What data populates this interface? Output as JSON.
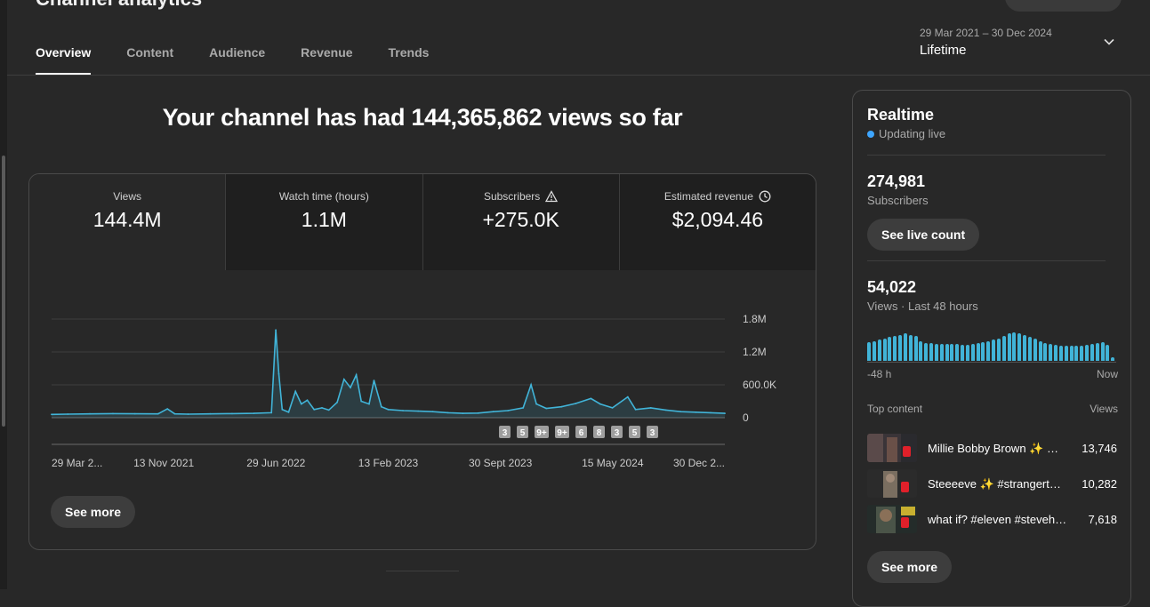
{
  "page_title": "Channel analytics",
  "tabs": [
    {
      "label": "Overview"
    },
    {
      "label": "Content"
    },
    {
      "label": "Audience"
    },
    {
      "label": "Revenue"
    },
    {
      "label": "Trends"
    }
  ],
  "date_range": {
    "range": "29 Mar 2021 – 30 Dec 2024",
    "label": "Lifetime"
  },
  "headline": "Your channel has had 144,365,862 views so far",
  "metrics": [
    {
      "label": "Views",
      "value": "144.4M",
      "icon": ""
    },
    {
      "label": "Watch time (hours)",
      "value": "1.1M",
      "icon": ""
    },
    {
      "label": "Subscribers",
      "value": "+275.0K",
      "icon": "warning-icon"
    },
    {
      "label": "Estimated revenue",
      "value": "$2,094.46",
      "icon": "clock-icon"
    }
  ],
  "chart_data": {
    "type": "line",
    "series_name": "Views",
    "color": "#41b4d8",
    "y_ticks": [
      "1.8M",
      "1.2M",
      "600.0K",
      "0"
    ],
    "ylim": [
      0,
      1800000
    ],
    "x_tick_labels": [
      "29 Mar 2...",
      "13 Nov 2021",
      "29 Jun 2022",
      "13 Feb 2023",
      "30 Sept 2023",
      "15 May 2024",
      "30 Dec 2..."
    ],
    "x_range": [
      "2021-03-29",
      "2024-12-30"
    ],
    "points": [
      [
        "2021-03-29",
        60000
      ],
      [
        "2021-05-01",
        65000
      ],
      [
        "2021-06-15",
        70000
      ],
      [
        "2021-08-01",
        75000
      ],
      [
        "2021-09-15",
        72000
      ],
      [
        "2021-11-01",
        70000
      ],
      [
        "2021-11-20",
        160000
      ],
      [
        "2021-12-05",
        70000
      ],
      [
        "2022-01-01",
        65000
      ],
      [
        "2022-02-15",
        70000
      ],
      [
        "2022-04-01",
        75000
      ],
      [
        "2022-05-15",
        80000
      ],
      [
        "2022-06-20",
        90000
      ],
      [
        "2022-06-29",
        1600000
      ],
      [
        "2022-07-05",
        800000
      ],
      [
        "2022-07-12",
        150000
      ],
      [
        "2022-07-25",
        100000
      ],
      [
        "2022-08-08",
        480000
      ],
      [
        "2022-08-20",
        250000
      ],
      [
        "2022-09-01",
        320000
      ],
      [
        "2022-09-15",
        150000
      ],
      [
        "2022-10-01",
        180000
      ],
      [
        "2022-10-15",
        140000
      ],
      [
        "2022-11-01",
        280000
      ],
      [
        "2022-11-15",
        700000
      ],
      [
        "2022-11-28",
        550000
      ],
      [
        "2022-12-10",
        780000
      ],
      [
        "2022-12-20",
        300000
      ],
      [
        "2023-01-05",
        250000
      ],
      [
        "2023-01-15",
        680000
      ],
      [
        "2023-01-30",
        200000
      ],
      [
        "2023-02-13",
        150000
      ],
      [
        "2023-03-15",
        130000
      ],
      [
        "2023-04-15",
        120000
      ],
      [
        "2023-05-15",
        110000
      ],
      [
        "2023-06-15",
        90000
      ],
      [
        "2023-07-15",
        80000
      ],
      [
        "2023-08-15",
        85000
      ],
      [
        "2023-09-15",
        110000
      ],
      [
        "2023-10-15",
        130000
      ],
      [
        "2023-11-15",
        180000
      ],
      [
        "2023-12-01",
        600000
      ],
      [
        "2023-12-12",
        250000
      ],
      [
        "2024-01-01",
        170000
      ],
      [
        "2024-02-01",
        200000
      ],
      [
        "2024-03-01",
        260000
      ],
      [
        "2024-04-01",
        350000
      ],
      [
        "2024-04-20",
        250000
      ],
      [
        "2024-05-15",
        180000
      ],
      [
        "2024-06-15",
        380000
      ],
      [
        "2024-07-01",
        150000
      ],
      [
        "2024-08-01",
        180000
      ],
      [
        "2024-09-01",
        140000
      ],
      [
        "2024-10-01",
        110000
      ],
      [
        "2024-11-01",
        100000
      ],
      [
        "2024-12-01",
        90000
      ],
      [
        "2024-12-30",
        80000
      ]
    ],
    "annotation_markers": [
      "3",
      "5",
      "9+",
      "9+",
      "6",
      "8",
      "3",
      "5",
      "3"
    ],
    "grid": true
  },
  "see_more_label": "See more",
  "realtime": {
    "title": "Realtime",
    "status": "Updating live",
    "subscribers_value": "274,981",
    "subscribers_label": "Subscribers",
    "live_count_button": "See live count",
    "views_value": "54,022",
    "views_label": "Views · Last 48 hours",
    "hourly_bars": [
      0.58,
      0.62,
      0.66,
      0.7,
      0.74,
      0.78,
      0.82,
      0.86,
      0.82,
      0.78,
      0.62,
      0.56,
      0.55,
      0.54,
      0.54,
      0.53,
      0.53,
      0.52,
      0.5,
      0.5,
      0.52,
      0.55,
      0.58,
      0.62,
      0.66,
      0.7,
      0.78,
      0.86,
      0.88,
      0.86,
      0.82,
      0.76,
      0.7,
      0.62,
      0.56,
      0.52,
      0.5,
      0.48,
      0.48,
      0.48,
      0.48,
      0.48,
      0.5,
      0.52,
      0.56,
      0.58,
      0.5,
      0.1
    ],
    "bars_start_label": "-48 h",
    "bars_end_label": "Now",
    "top_content_label": "Top content",
    "views_col_label": "Views",
    "top_content": [
      {
        "title": "Millie Bobby Brown ✨ …",
        "views": "13,746"
      },
      {
        "title": "Steeeeve ✨ #strangert…",
        "views": "10,282"
      },
      {
        "title": "what if? #eleven #steveh…",
        "views": "7,618"
      }
    ],
    "see_more_label": "See more"
  }
}
